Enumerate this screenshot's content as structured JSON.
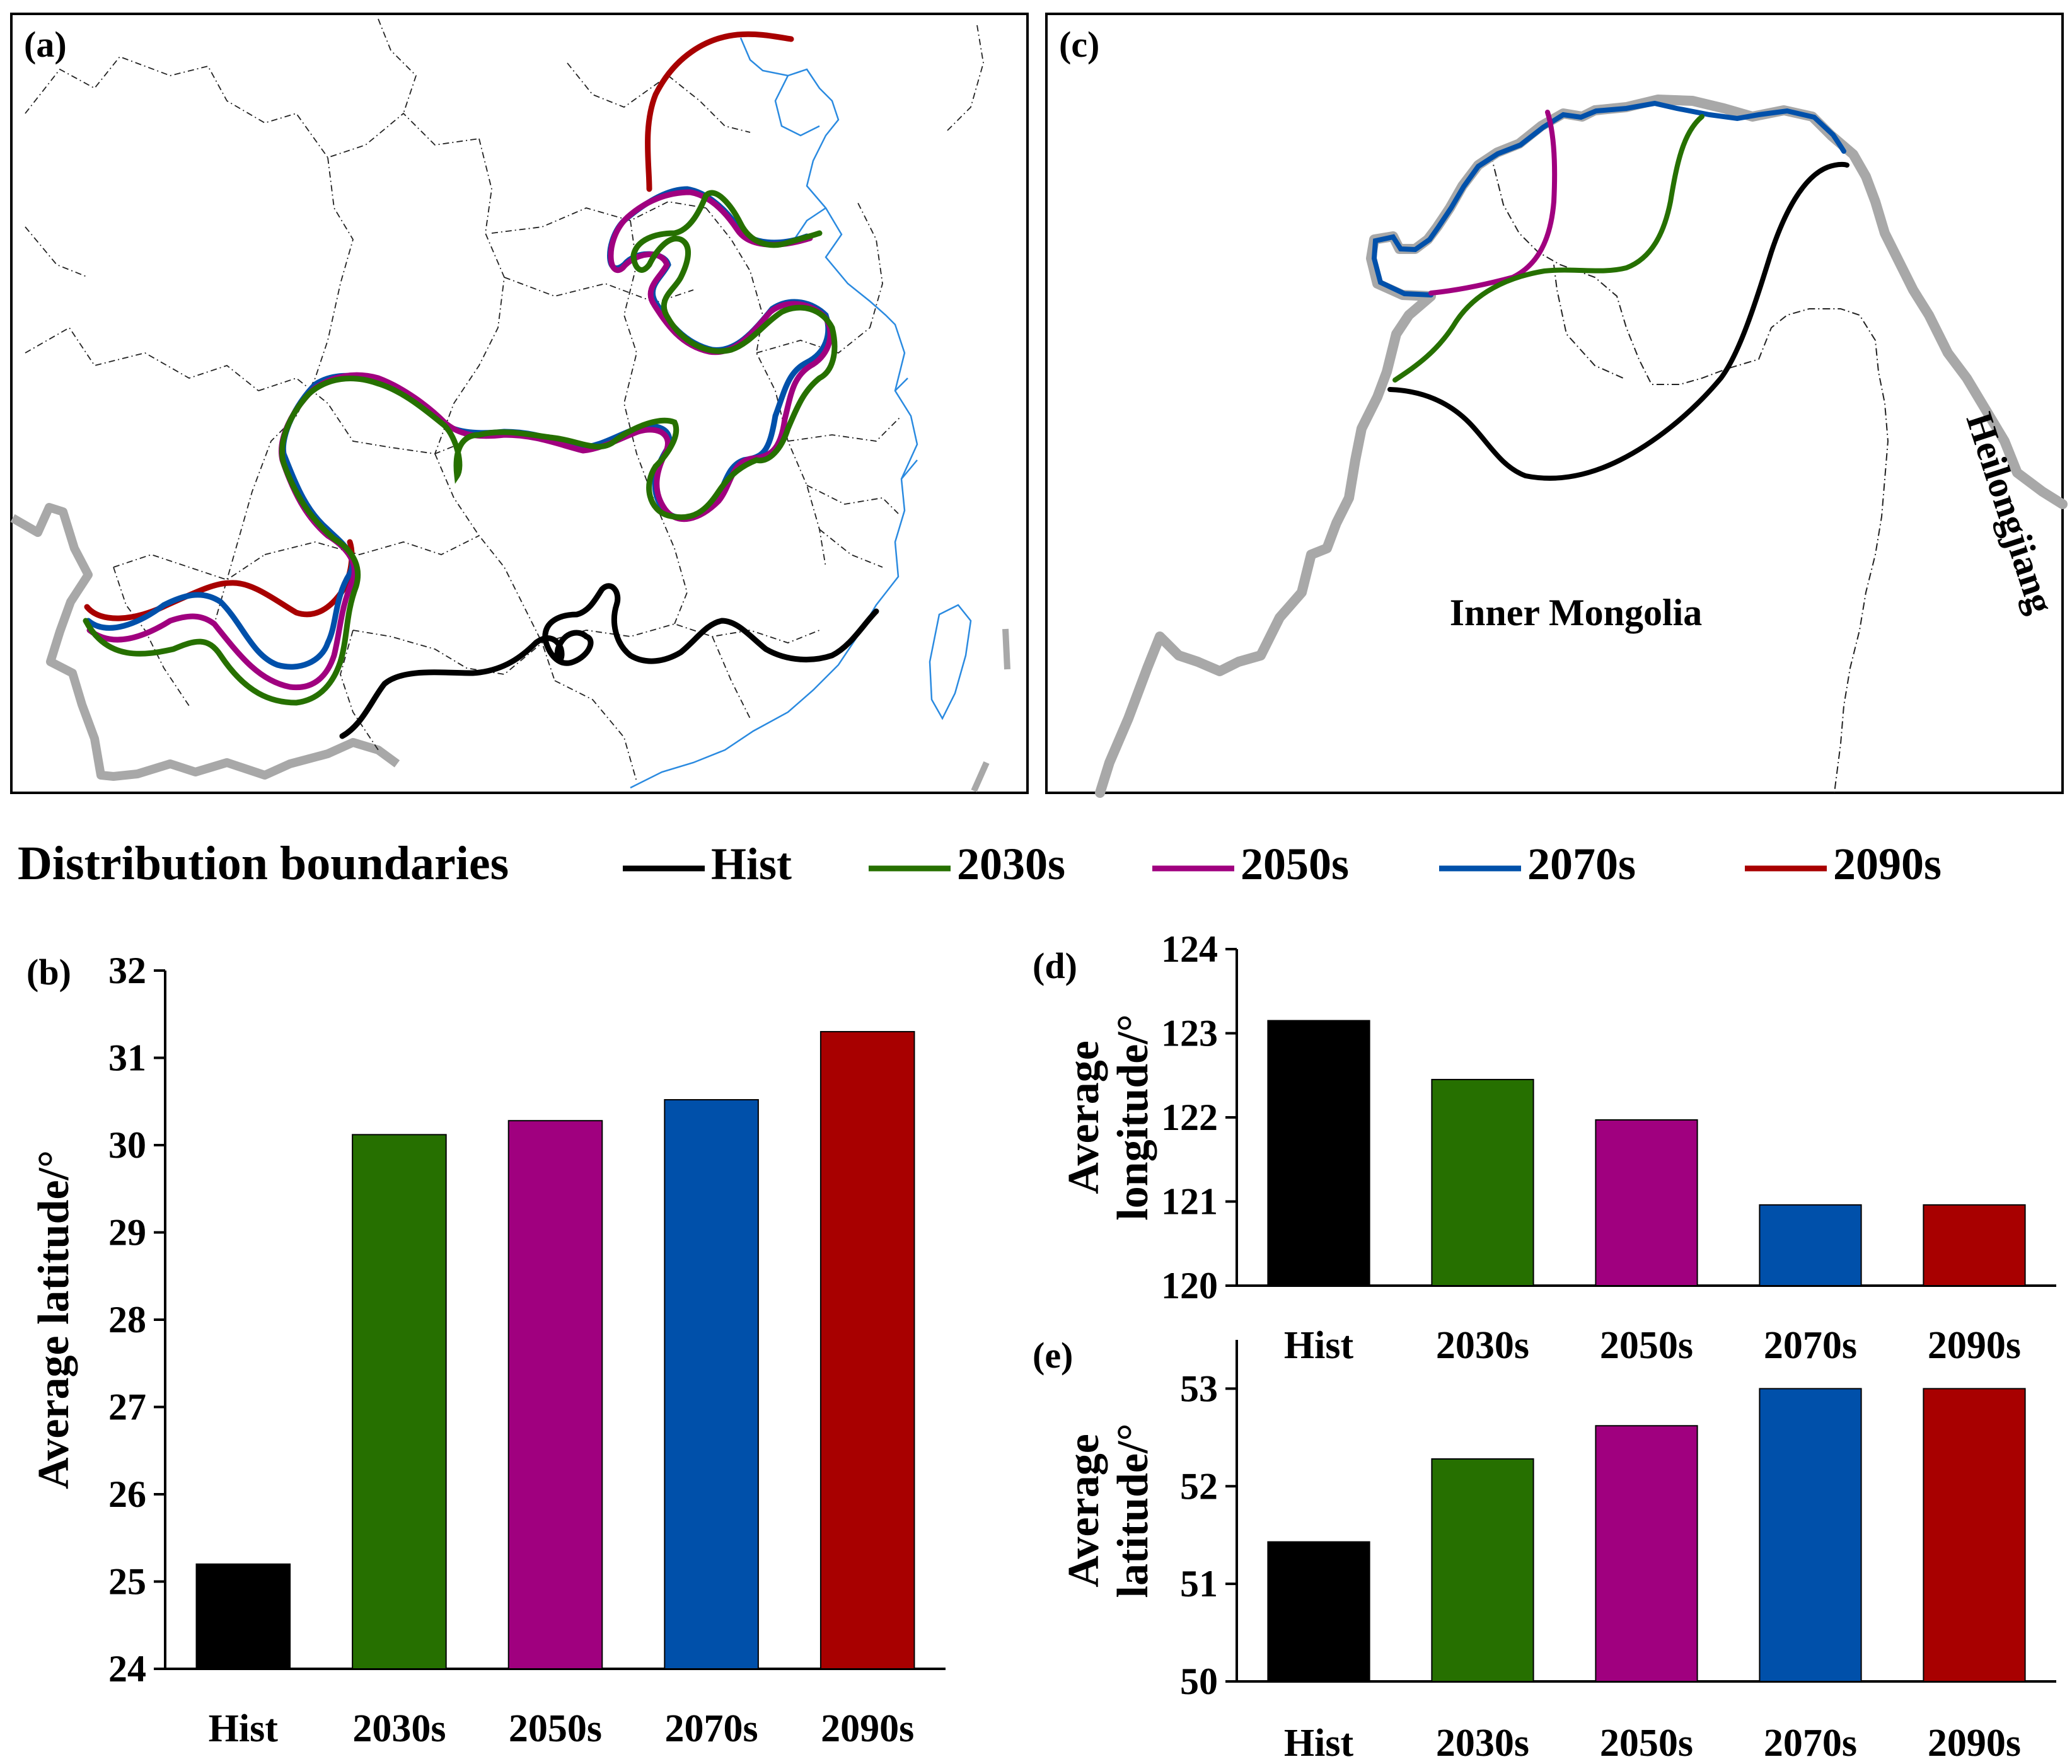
{
  "panels": {
    "a": {
      "label": "(a)"
    },
    "c": {
      "label": "(c)",
      "region_left": "Inner Mongolia",
      "region_right": "Heilongjiang"
    }
  },
  "legend": {
    "title": "Distribution boundaries",
    "entries": [
      {
        "name": "Hist",
        "color": "#000000"
      },
      {
        "name": "2030s",
        "color": "#2e7d0e"
      },
      {
        "name": "2050s",
        "color": "#a0007f"
      },
      {
        "name": "2070s",
        "color": "#0047a8"
      },
      {
        "name": "2090s",
        "color": "#a80000"
      }
    ]
  },
  "colors": {
    "Hist": "#000000",
    "2030s": "#267000",
    "2050s": "#a0007f",
    "2070s": "#0050aa",
    "2090s": "#a80000",
    "border": "#a8a8a8",
    "coast": "#2a8ae0"
  },
  "chart_data": [
    {
      "id": "b",
      "type": "bar",
      "panel_label": "(b)",
      "categories": [
        "Hist",
        "2030s",
        "2050s",
        "2070s",
        "2090s"
      ],
      "values": [
        25.2,
        30.12,
        30.28,
        30.52,
        31.3
      ],
      "ylabel": "Average latitude/°",
      "xlabel": "",
      "ylim": [
        24,
        32
      ],
      "yticks": [
        24,
        25,
        26,
        27,
        28,
        29,
        30,
        31,
        32
      ]
    },
    {
      "id": "d",
      "type": "bar",
      "panel_label": "(d)",
      "categories": [
        "Hist",
        "2030s",
        "2050s",
        "2070s",
        "2090s"
      ],
      "values": [
        123.15,
        122.45,
        121.97,
        120.96,
        120.96
      ],
      "ylabel": "Average longitude/°",
      "ylabel_lines": [
        "Average",
        "longitude/°"
      ],
      "ylim": [
        120,
        124
      ],
      "yticks": [
        120,
        121,
        122,
        123,
        124
      ]
    },
    {
      "id": "e",
      "type": "bar",
      "panel_label": "(e)",
      "categories": [
        "Hist",
        "2030s",
        "2050s",
        "2070s",
        "2090s"
      ],
      "values": [
        51.43,
        52.28,
        52.62,
        53.0,
        53.0
      ],
      "ylabel": "Average latitude/°",
      "ylabel_lines": [
        "Average",
        "latitude/°"
      ],
      "ylim": [
        50,
        53.5
      ],
      "yticks": [
        50,
        51,
        52,
        53
      ]
    }
  ]
}
